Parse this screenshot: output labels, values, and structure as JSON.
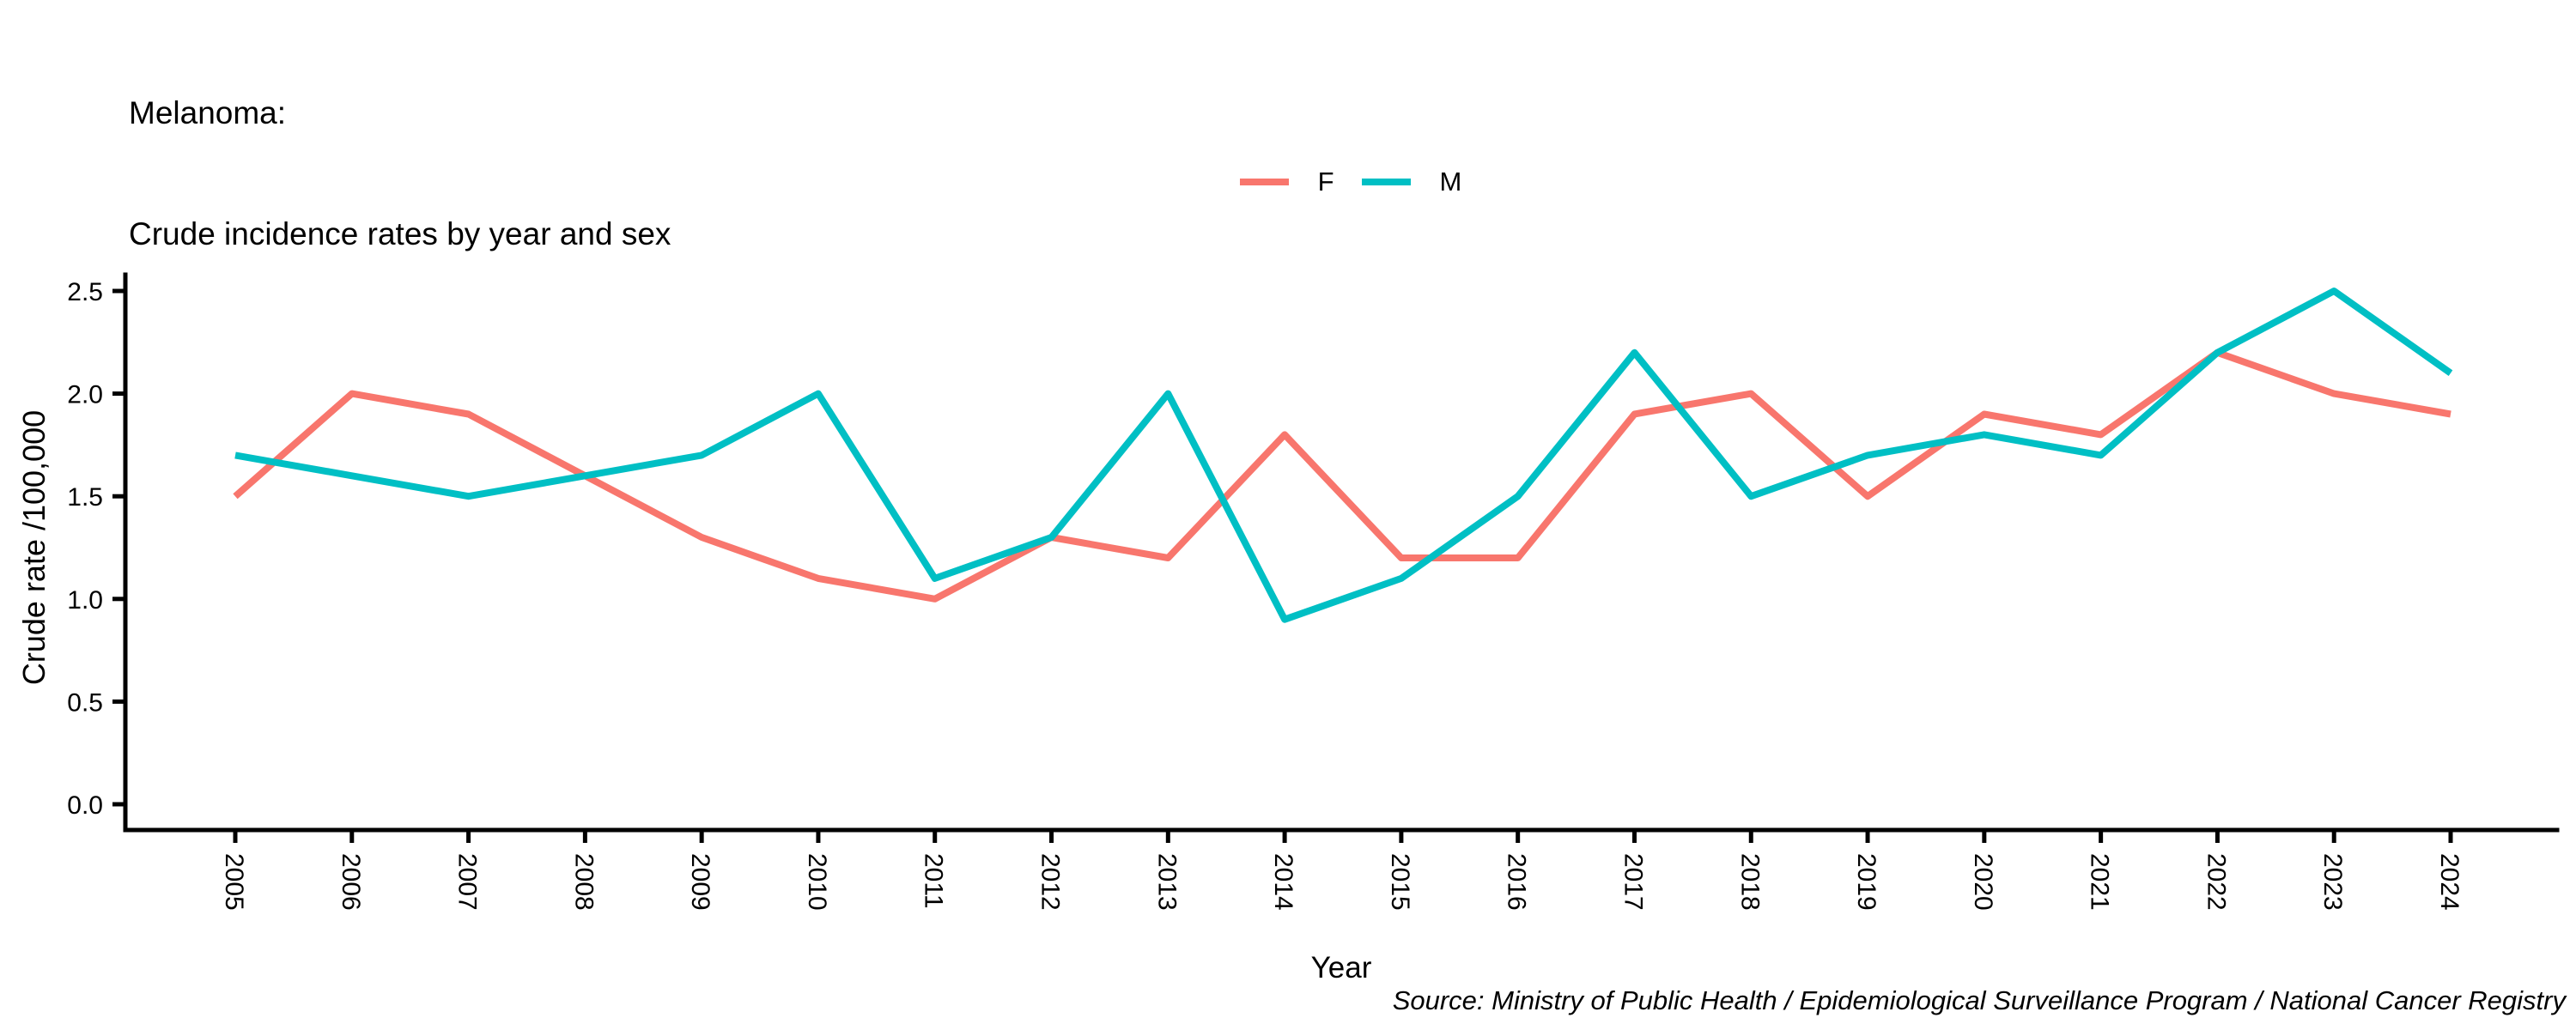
{
  "title": {
    "line1": "Melanoma:",
    "line2": "Crude incidence rates by year and sex"
  },
  "legend": {
    "items": [
      {
        "label": "F",
        "color": "#F8766D"
      },
      {
        "label": "M",
        "color": "#00BFC4"
      }
    ]
  },
  "chart_data": {
    "type": "line",
    "title": "Melanoma: Crude incidence rates by year and sex",
    "xlabel": "Year",
    "ylabel": "Crude rate /100,000",
    "x": [
      2005,
      2006,
      2007,
      2008,
      2009,
      2010,
      2011,
      2012,
      2013,
      2014,
      2015,
      2016,
      2017,
      2018,
      2019,
      2020,
      2021,
      2022,
      2023,
      2024
    ],
    "series": [
      {
        "name": "F",
        "color": "#F8766D",
        "values": [
          1.5,
          2.0,
          1.9,
          1.6,
          1.3,
          1.1,
          1.0,
          1.3,
          1.2,
          1.8,
          1.2,
          1.2,
          1.9,
          2.0,
          1.5,
          1.9,
          1.8,
          2.2,
          2.0,
          1.9
        ]
      },
      {
        "name": "M",
        "color": "#00BFC4",
        "values": [
          1.7,
          1.6,
          1.5,
          1.6,
          1.7,
          2.0,
          1.1,
          1.3,
          2.0,
          0.9,
          1.1,
          1.5,
          2.2,
          1.5,
          1.7,
          1.8,
          1.7,
          2.2,
          2.5,
          2.1
        ]
      }
    ],
    "y_ticks": [
      0.0,
      0.5,
      1.0,
      1.5,
      2.0,
      2.5
    ],
    "ylim": [
      0,
      2.5
    ],
    "grid": false,
    "legend_position": "top-center",
    "axis_color": "#000000"
  },
  "source_note": "Source: Ministry of Public Health / Epidemiological Surveillance Program / National Cancer Registry"
}
